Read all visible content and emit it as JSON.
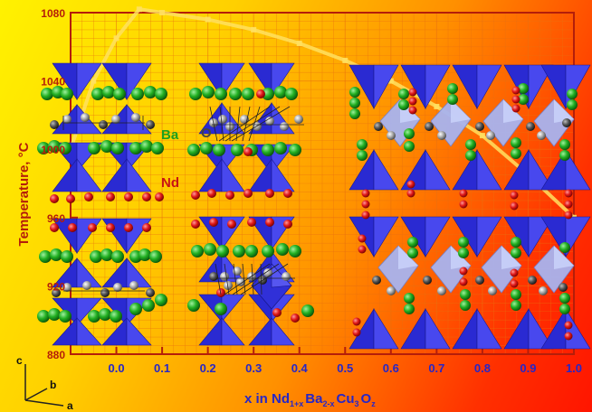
{
  "chart_data": {
    "type": "line",
    "ylabel": "Temperature, °C",
    "yticks": [
      "1080",
      "1040",
      "1000",
      "960",
      "920",
      "880"
    ],
    "xticks": [
      "0.0",
      "0.1",
      "0.2",
      "0.3",
      "0.4",
      "0.5",
      "0.6",
      "0.7",
      "0.8",
      "0.9",
      "1.0"
    ],
    "xlabel": {
      "main": "x in Nd",
      "s1": "1+x",
      "m1": "Ba",
      "s2": "2-x",
      "m2": "Cu",
      "s3": "3",
      "m3": "O",
      "s4": "z"
    },
    "xlim": [
      -0.1,
      1.0
    ],
    "ylim": [
      880,
      1080
    ],
    "series": [
      {
        "x": [
          -0.1,
          -0.05,
          0.0,
          0.05,
          0.1,
          0.2,
          0.3,
          0.4,
          0.5,
          0.6,
          0.7,
          0.8,
          0.9,
          1.0
        ],
        "y": [
          1000,
          1040,
          1065,
          1082,
          1080,
          1076,
          1070,
          1062,
          1052,
          1040,
          1025,
          1008,
          985,
          960
        ]
      }
    ]
  },
  "labels": {
    "ba": "Ba",
    "nd": "Nd",
    "o": "O",
    "axis_c": "c",
    "axis_b": "b",
    "axis_a": "a"
  },
  "colors": {
    "axis": "#b41e0a",
    "curve": "#ffe060",
    "polyhedra": "#2a2ad2",
    "polyhedra_light": "#a8b4f0",
    "ba_atom": "#1ea01e",
    "nd_atom": "#d21414",
    "cu_atom": "#9a9a9a"
  }
}
